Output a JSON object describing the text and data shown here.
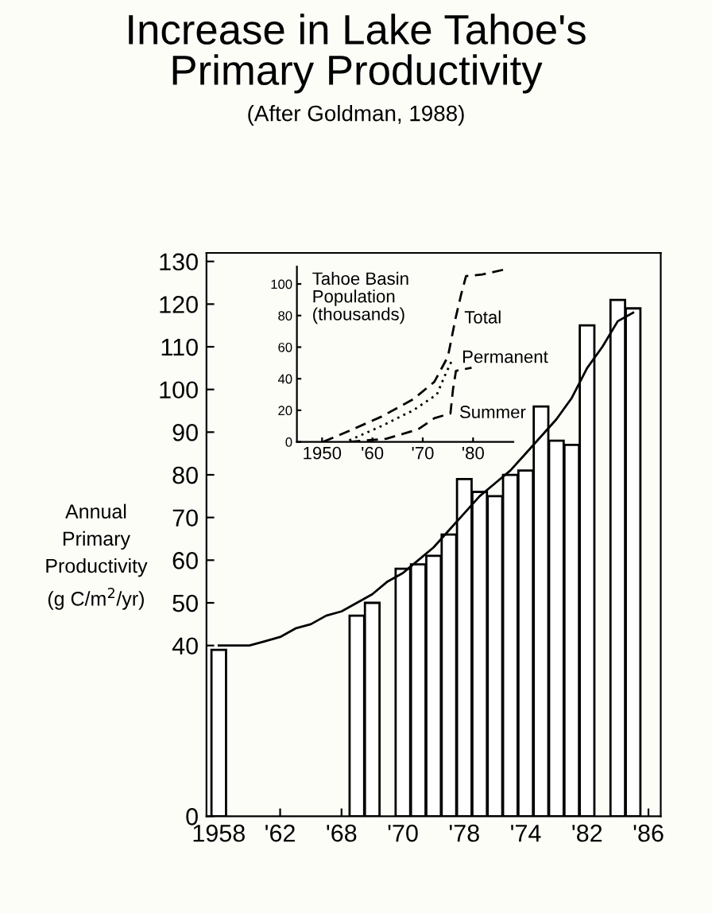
{
  "chart_data": [
    {
      "type": "bar",
      "title": "Increase in Lake Tahoe's\nPrimary Productivity",
      "subtitle": "(After Goldman, 1988)",
      "ylabel": "Annual\nPrimary\nProductivity\n(g C/m$^{2}$/yr)",
      "categories": [
        "1958",
        null,
        null,
        null,
        "'62",
        null,
        null,
        null,
        "'68",
        null,
        null,
        null,
        "'70",
        null,
        null,
        null,
        "'78",
        null,
        null,
        null,
        "'74",
        null,
        null,
        null,
        "'82",
        null,
        null,
        null,
        "'86"
      ],
      "series": [
        {
          "type": "bar",
          "color": "#ffffff",
          "values": [
            39,
            null,
            null,
            null,
            null,
            null,
            null,
            null,
            null,
            47,
            50,
            null,
            58,
            59,
            61,
            66,
            79,
            76,
            75,
            80,
            81,
            96,
            88,
            87,
            115,
            null,
            121,
            119,
            null
          ]
        },
        {
          "type": "line",
          "color": "#000000",
          "values": [
            40,
            40,
            40,
            41,
            42,
            44,
            45,
            47,
            48,
            50,
            52,
            55,
            57,
            60,
            63,
            67,
            71,
            75,
            78,
            81,
            85,
            89,
            93,
            98,
            105,
            110,
            116,
            118,
            null
          ]
        }
      ],
      "ylim": [
        0,
        132
      ],
      "yticks": [
        0,
        40,
        50,
        60,
        70,
        80,
        90,
        100,
        110,
        120,
        130
      ],
      "grid": false
    },
    {
      "type": "line",
      "title": "Tahoe Basin\nPopulation\n(thousands)",
      "series": [
        {
          "name": "Total",
          "color": "#000000",
          "line_style": "dashed",
          "x": [
            1950.2,
            1955.4,
            1961.8,
            1968.1,
            1972.3,
            1975.0,
            1976.5,
            1977.6,
            1978.6,
            1981.8,
            1986.0
          ],
          "values": [
            0,
            7,
            16,
            27,
            38,
            54,
            78,
            93,
            105,
            106,
            109
          ]
        },
        {
          "name": "Permanent",
          "color": "#000000",
          "line_style": "dotted",
          "x": [
            1955.4,
            1961.8,
            1968.1,
            1972.8,
            1974.4,
            1976.0
          ],
          "values": [
            1,
            10,
            20,
            30,
            42,
            53
          ]
        },
        {
          "name": "Summer",
          "color": "#000000",
          "line_style": "dashed",
          "x": [
            1955.4,
            1962.8,
            1969.1,
            1972.3,
            1975.5,
            1976.0,
            1976.6,
            1979.7
          ],
          "values": [
            0,
            2,
            8,
            15,
            18,
            33,
            45,
            47
          ]
        }
      ],
      "xlim": [
        1945,
        1988
      ],
      "xticks": [
        {
          "value": 1950,
          "label": "1950"
        },
        {
          "value": 1960,
          "label": "'60"
        },
        {
          "value": 1970,
          "label": "'70"
        },
        {
          "value": 1980,
          "label": "'80"
        }
      ],
      "ylim": [
        0,
        111
      ],
      "yticks": [
        0,
        20,
        40,
        60,
        80,
        100
      ],
      "grid": false
    }
  ]
}
